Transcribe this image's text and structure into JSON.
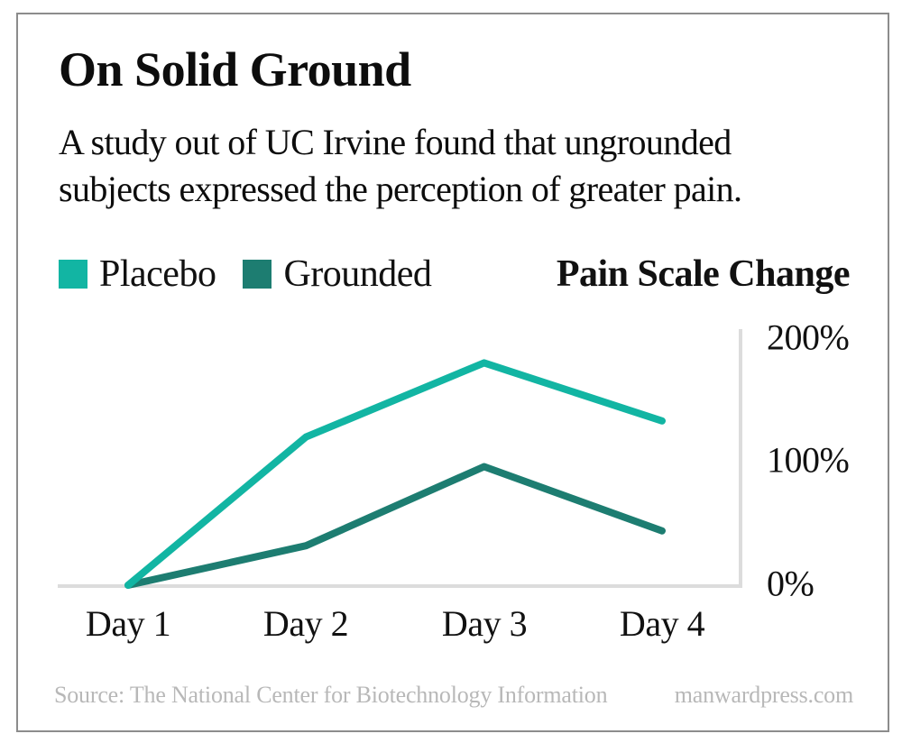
{
  "card": {
    "title": "On Solid Ground",
    "subtitle_line1": "A study out of UC Irvine found that ungrounded",
    "subtitle_line2": "subjects expressed the perception of greater pain."
  },
  "legend": {
    "items": [
      {
        "label": "Placebo",
        "color": "#12b5a3"
      },
      {
        "label": "Grounded",
        "color": "#1d7d71"
      }
    ],
    "axis_title": "Pain Scale Change"
  },
  "chart_data": {
    "type": "line",
    "title": "On Solid Ground",
    "categories": [
      "Day 1",
      "Day 2",
      "Day 3",
      "Day 4"
    ],
    "series": [
      {
        "name": "Placebo",
        "color": "#12b5a3",
        "values": [
          0,
          120,
          180,
          133
        ]
      },
      {
        "name": "Grounded",
        "color": "#1d7d71",
        "values": [
          0,
          32,
          96,
          44
        ]
      }
    ],
    "ylabel": "Pain Scale Change",
    "ylim": [
      0,
      200
    ],
    "y_ticks": [
      {
        "label": "0%",
        "value": 0
      },
      {
        "label": "100%",
        "value": 100
      },
      {
        "label": "200%",
        "value": 200
      }
    ],
    "y_tick_side": "right",
    "grid": false,
    "legend_position": "top-left"
  },
  "footer": {
    "source": "Source: The National Center for Biotechnology Information",
    "site": "manwardpress.com"
  },
  "colors": {
    "axis_line": "#dcdcdc",
    "card_border": "#8c8c8c",
    "footer_text": "#b8b8b8",
    "text": "#0d0d0d"
  }
}
